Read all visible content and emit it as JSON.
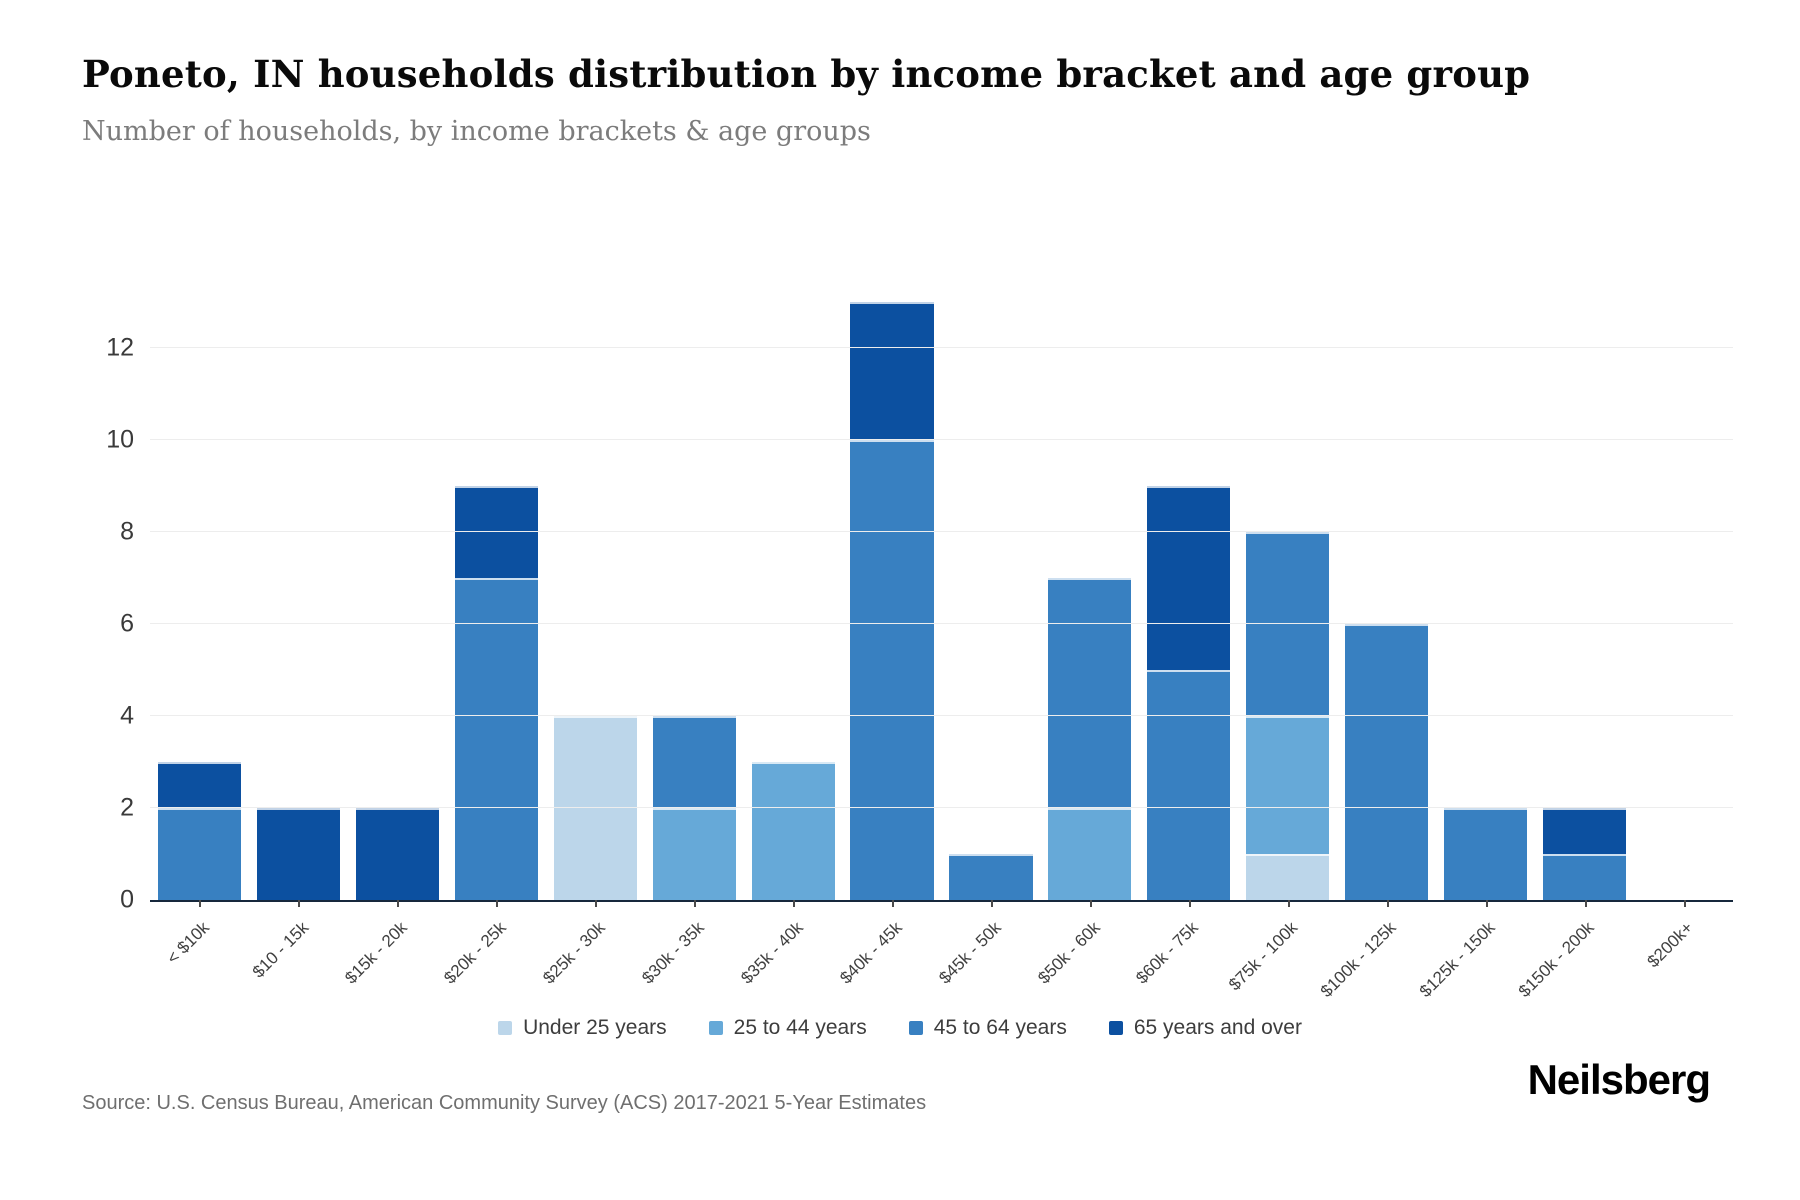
{
  "header": {
    "title": "Poneto, IN households distribution by income bracket and age group",
    "subtitle": "Number of households, by income brackets & age groups"
  },
  "chart_data": {
    "type": "bar",
    "stacked": true,
    "title": "Poneto, IN households distribution by income bracket and age group",
    "subtitle": "Number of households, by income brackets & age groups",
    "categories": [
      "< $10k",
      "$10 - 15k",
      "$15k - 20k",
      "$20k - 25k",
      "$25k - 30k",
      "$30k - 35k",
      "$35k - 40k",
      "$40k - 45k",
      "$45k - 50k",
      "$50k - 60k",
      "$60k - 75k",
      "$75k - 100k",
      "$100k - 125k",
      "$125k - 150k",
      "$150k - 200k",
      "$200k+"
    ],
    "series": [
      {
        "name": "Under 25 years",
        "color": "#bcd6ea",
        "values": [
          0,
          0,
          0,
          0,
          4,
          0,
          0,
          0,
          0,
          0,
          0,
          1,
          0,
          0,
          0,
          0
        ]
      },
      {
        "name": "25 to 44 years",
        "color": "#66a9d8",
        "values": [
          0,
          0,
          0,
          0,
          0,
          2,
          3,
          0,
          0,
          2,
          0,
          3,
          0,
          0,
          0,
          0
        ]
      },
      {
        "name": "45 to 64 years",
        "color": "#3880c1",
        "values": [
          2,
          0,
          0,
          7,
          0,
          2,
          0,
          10,
          1,
          5,
          5,
          4,
          6,
          2,
          1,
          0
        ]
      },
      {
        "name": "65 years and over",
        "color": "#0c50a0",
        "values": [
          1,
          2,
          2,
          2,
          0,
          0,
          0,
          3,
          0,
          0,
          4,
          0,
          0,
          0,
          1,
          0
        ]
      }
    ],
    "totals": [
      3,
      2,
      2,
      9,
      4,
      4,
      3,
      13,
      1,
      7,
      9,
      8,
      6,
      2,
      2,
      0
    ],
    "xlabel": "",
    "ylabel": "",
    "yticks": [
      0,
      2,
      4,
      6,
      8,
      10,
      12
    ],
    "ylim": [
      0,
      13
    ],
    "grid": true,
    "legend_position": "bottom"
  },
  "footer": {
    "source": "Source: U.S. Census Bureau, American Community Survey (ACS) 2017-2021 5-Year Estimates",
    "brand": "Neilsberg"
  }
}
